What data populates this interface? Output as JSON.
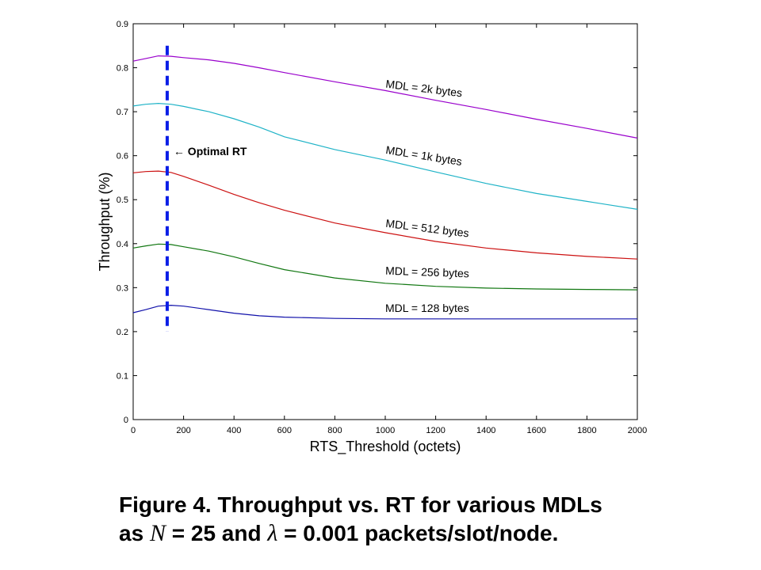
{
  "chart_data": {
    "type": "line",
    "xlabel": "RTS_Threshold (octets)",
    "ylabel": "Throughput (%)",
    "xlim": [
      0,
      2000
    ],
    "ylim": [
      0,
      0.9
    ],
    "x_ticks": [
      "0",
      "200",
      "400",
      "600",
      "800",
      "1000",
      "1200",
      "1400",
      "1600",
      "1800",
      "2000"
    ],
    "y_ticks": [
      "0",
      "0.1",
      "0.2",
      "0.3",
      "0.4",
      "0.5",
      "0.6",
      "0.7",
      "0.8",
      "0.9"
    ],
    "grid": false,
    "x": [
      0,
      50,
      100,
      150,
      200,
      300,
      400,
      500,
      600,
      800,
      1000,
      1200,
      1400,
      1600,
      1800,
      2000
    ],
    "series": [
      {
        "name": "MDL = 2k bytes",
        "color": "#9900cc",
        "values": [
          0.815,
          0.821,
          0.827,
          0.826,
          0.823,
          0.818,
          0.81,
          0.8,
          0.789,
          0.768,
          0.748,
          0.726,
          0.705,
          0.683,
          0.662,
          0.64
        ]
      },
      {
        "name": "MDL = 1k bytes",
        "color": "#1fb3c7",
        "values": [
          0.713,
          0.717,
          0.719,
          0.717,
          0.712,
          0.7,
          0.684,
          0.665,
          0.643,
          0.614,
          0.59,
          0.563,
          0.537,
          0.514,
          0.496,
          0.478
        ]
      },
      {
        "name": "MDL = 512 bytes",
        "color": "#cc1111",
        "values": [
          0.561,
          0.564,
          0.565,
          0.562,
          0.553,
          0.533,
          0.512,
          0.493,
          0.476,
          0.447,
          0.425,
          0.405,
          0.39,
          0.379,
          0.371,
          0.365
        ]
      },
      {
        "name": "MDL = 256 bytes",
        "color": "#117711",
        "values": [
          0.39,
          0.395,
          0.399,
          0.398,
          0.393,
          0.383,
          0.37,
          0.355,
          0.341,
          0.322,
          0.31,
          0.303,
          0.299,
          0.297,
          0.296,
          0.295
        ]
      },
      {
        "name": "MDL = 128 bytes",
        "color": "#1111aa",
        "values": [
          0.243,
          0.25,
          0.258,
          0.26,
          0.258,
          0.25,
          0.242,
          0.236,
          0.233,
          0.23,
          0.229,
          0.229,
          0.229,
          0.229,
          0.229,
          0.229
        ]
      }
    ],
    "labels": [
      {
        "text": "MDL = 2k bytes",
        "x": 1000,
        "y": 0.755,
        "angle": 7
      },
      {
        "text": "MDL = 1k bytes",
        "x": 1000,
        "y": 0.605,
        "angle": 9
      },
      {
        "text": "MDL = 512 bytes",
        "x": 1000,
        "y": 0.438,
        "angle": 7
      },
      {
        "text": "MDL = 256 bytes",
        "x": 1000,
        "y": 0.33,
        "angle": 2
      },
      {
        "text": "MDL = 128 bytes",
        "x": 1000,
        "y": 0.245,
        "angle": 0
      }
    ],
    "marker": {
      "x": 135,
      "y_from": 0.2,
      "y_to": 0.85,
      "color": "#0a1ee6",
      "label": "← Optimal RT",
      "label_y": 0.61
    }
  },
  "caption": {
    "line1": "Figure 4. Throughput vs. RT for various MDLs",
    "line2_as": "as",
    "line2_N": "N",
    "line2_eq1": "= 25 and",
    "line2_lambda": "λ",
    "line2_eq2": "= 0.001 packets/slot/node."
  }
}
